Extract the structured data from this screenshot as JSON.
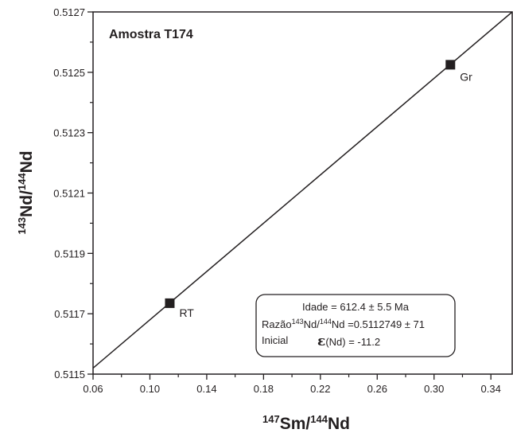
{
  "chart_data": {
    "type": "scatter",
    "title": "Amostra T174",
    "xlabel": {
      "sup1": "147",
      "main1": "Sm/",
      "sup2": "144",
      "main2": "Nd"
    },
    "ylabel": {
      "sup1": "143",
      "main1": "Nd/",
      "sup2": "144",
      "main2": "Nd"
    },
    "xlim": [
      0.06,
      0.355
    ],
    "ylim": [
      0.5115,
      0.5127
    ],
    "x_ticks": [
      "0.06",
      "0.10",
      "0.14",
      "0.18",
      "0.22",
      "0.26",
      "0.30",
      "0.34"
    ],
    "y_ticks": [
      "0.5115",
      "0.5117",
      "0.5119",
      "0.5121",
      "0.5123",
      "0.5125",
      "0.5127"
    ],
    "points": [
      {
        "label": "RT",
        "x": 0.114,
        "y": 0.511735
      },
      {
        "label": "Gr",
        "x": 0.3115,
        "y": 0.512525
      }
    ],
    "isochron": {
      "x": [
        0.06,
        0.355
      ],
      "y": [
        0.51152,
        0.5127
      ]
    },
    "annotation": {
      "line1": "Idade = 612.4 ± 5.5 Ma",
      "line2_prefix": "Razão",
      "line2_sup1": "143",
      "line2_mid": "Nd/",
      "line2_sup2": "144",
      "line2_suffix": "Nd =0.5112749 ± 71",
      "line3_prefix": "Inicial",
      "line3_eps": "ε",
      "line3_suffix": "(Nd) = -11.2"
    }
  }
}
